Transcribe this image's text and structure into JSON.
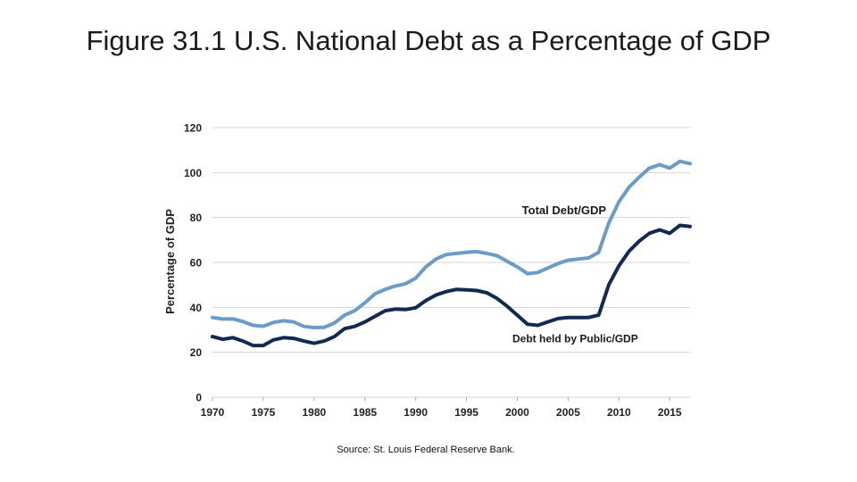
{
  "slide": {
    "title": "Figure 31.1 U.S. National Debt as a Percentage of GDP",
    "source": "Source: St. Louis Federal Reserve Bank."
  },
  "colors": {
    "total_debt": "#6b9cc8",
    "public_debt": "#122a52",
    "grid": "#d4d4d4",
    "text": "#222222"
  },
  "chart_data": {
    "type": "line",
    "title": "",
    "xlabel": "",
    "ylabel": "Percentage of GDP",
    "xlim": [
      1970,
      2017
    ],
    "ylim": [
      0,
      120
    ],
    "x_ticks": [
      1970,
      1975,
      1980,
      1985,
      1990,
      1995,
      2000,
      2005,
      2010,
      2015
    ],
    "y_ticks": [
      0,
      20,
      40,
      60,
      80,
      100,
      120
    ],
    "grid": "horizontal",
    "legend": "inline-labels",
    "x": [
      1970,
      1971,
      1972,
      1973,
      1974,
      1975,
      1976,
      1977,
      1978,
      1979,
      1980,
      1981,
      1982,
      1983,
      1984,
      1985,
      1986,
      1987,
      1988,
      1989,
      1990,
      1991,
      1992,
      1993,
      1994,
      1995,
      1996,
      1997,
      1998,
      1999,
      2000,
      2001,
      2002,
      2003,
      2004,
      2005,
      2006,
      2007,
      2008,
      2009,
      2010,
      2011,
      2012,
      2013,
      2014,
      2015,
      2016,
      2017
    ],
    "series": [
      {
        "name": "Total Debt/GDP",
        "values": [
          35.5,
          34.8,
          34.9,
          33.7,
          32.0,
          31.6,
          33.3,
          34.0,
          33.5,
          31.5,
          31.0,
          31.1,
          33.0,
          36.5,
          38.5,
          42.0,
          46.0,
          48.0,
          49.5,
          50.5,
          53.0,
          58.0,
          61.5,
          63.5,
          64.0,
          64.5,
          64.8,
          64.0,
          63.0,
          60.5,
          58.0,
          55.0,
          55.5,
          57.5,
          59.5,
          61.0,
          61.5,
          62.0,
          64.5,
          77.5,
          87.0,
          93.5,
          98.0,
          102.0,
          103.5,
          102.0,
          105.0,
          104.0
        ]
      },
      {
        "name": "Debt held by Public/GDP",
        "values": [
          27.0,
          25.8,
          26.5,
          25.0,
          23.0,
          23.0,
          25.5,
          26.5,
          26.2,
          25.0,
          24.0,
          25.0,
          27.0,
          30.5,
          31.5,
          33.5,
          36.0,
          38.5,
          39.2,
          39.0,
          39.8,
          43.0,
          45.5,
          47.0,
          48.0,
          47.8,
          47.5,
          46.5,
          44.0,
          40.5,
          36.5,
          32.5,
          32.0,
          33.5,
          35.0,
          35.5,
          35.5,
          35.5,
          36.5,
          50.0,
          58.5,
          65.0,
          69.5,
          73.0,
          74.5,
          73.0,
          76.5,
          76.0
        ]
      }
    ]
  }
}
